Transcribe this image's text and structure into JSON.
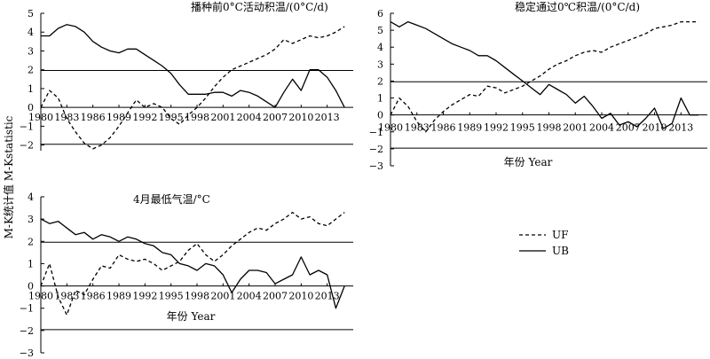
{
  "y_axis_label": "M-K统计值 M-Kstatistic",
  "legend": {
    "uf_label": "UF",
    "ub_label": "UB"
  },
  "chart_data": [
    {
      "type": "line",
      "title": "播种前0°C活动积温/(0°C/d)",
      "xlabel": "",
      "ylabel": "",
      "x_ticks": [
        "1980",
        "1983",
        "1986",
        "1989",
        "1992",
        "1995",
        "1998",
        "2001",
        "2004",
        "2007",
        "2010",
        "2013"
      ],
      "y_ticks": [
        "5",
        "4",
        "3",
        "2",
        "1",
        "0",
        "−1",
        "−2"
      ],
      "xlim": [
        1980,
        2016
      ],
      "ylim": [
        -2.3,
        5
      ],
      "reference_lines": [
        1.96,
        -1.96
      ],
      "series": [
        {
          "name": "UF",
          "style": "dashed",
          "x": [
            1980,
            1981,
            1982,
            1983,
            1984,
            1985,
            1986,
            1987,
            1988,
            1989,
            1990,
            1991,
            1992,
            1993,
            1994,
            1995,
            1996,
            1997,
            1998,
            1999,
            2000,
            2001,
            2002,
            2003,
            2004,
            2005,
            2006,
            2007,
            2008,
            2009,
            2010,
            2011,
            2012,
            2013,
            2014,
            2015
          ],
          "values": [
            0,
            0.9,
            0.5,
            -0.6,
            -1.3,
            -1.9,
            -2.2,
            -2.0,
            -1.6,
            -1.0,
            -0.3,
            0.4,
            0.0,
            0.2,
            0.0,
            -0.6,
            -0.9,
            -0.4,
            0.0,
            0.5,
            1.1,
            1.6,
            2.0,
            2.2,
            2.4,
            2.6,
            2.8,
            3.1,
            3.6,
            3.4,
            3.6,
            3.8,
            3.7,
            3.8,
            4.0,
            4.3
          ]
        },
        {
          "name": "UB",
          "style": "solid",
          "x": [
            1980,
            1981,
            1982,
            1983,
            1984,
            1985,
            1986,
            1987,
            1988,
            1989,
            1990,
            1991,
            1992,
            1993,
            1994,
            1995,
            1996,
            1997,
            1998,
            1999,
            2000,
            2001,
            2002,
            2003,
            2004,
            2005,
            2006,
            2007,
            2008,
            2009,
            2010,
            2011,
            2012,
            2013,
            2014,
            2015
          ],
          "values": [
            3.8,
            3.8,
            4.2,
            4.4,
            4.3,
            4.0,
            3.5,
            3.2,
            3.0,
            2.9,
            3.1,
            3.1,
            2.8,
            2.5,
            2.2,
            1.8,
            1.2,
            0.7,
            0.7,
            0.7,
            0.8,
            0.8,
            0.6,
            0.9,
            0.8,
            0.6,
            0.3,
            0.0,
            0.8,
            1.5,
            0.9,
            2.0,
            2.0,
            1.6,
            0.9,
            0.0
          ]
        }
      ]
    },
    {
      "type": "line",
      "title": "稳定通过0℃积温/(0°C/d)",
      "xlabel": "年份 Year",
      "ylabel": "",
      "x_ticks": [
        "1980",
        "1983",
        "1986",
        "1989",
        "1992",
        "1995",
        "1998",
        "2001",
        "2004",
        "2007",
        "2010",
        "2013"
      ],
      "y_ticks": [
        "6",
        "5",
        "4",
        "3",
        "2",
        "1",
        "0",
        "−1",
        "−2",
        "−3"
      ],
      "xlim": [
        1980,
        2016
      ],
      "ylim": [
        -3,
        6
      ],
      "reference_lines": [
        1.96,
        -1.96
      ],
      "series": [
        {
          "name": "UF",
          "style": "dashed",
          "x": [
            1980,
            1981,
            1982,
            1983,
            1984,
            1985,
            1986,
            1987,
            1988,
            1989,
            1990,
            1991,
            1992,
            1993,
            1994,
            1995,
            1996,
            1997,
            1998,
            1999,
            2000,
            2001,
            2002,
            2003,
            2004,
            2005,
            2006,
            2007,
            2008,
            2009,
            2010,
            2011,
            2012,
            2013,
            2014,
            2015
          ],
          "values": [
            0,
            1.0,
            0.5,
            -0.4,
            -1.0,
            -0.3,
            0.2,
            0.6,
            0.9,
            1.2,
            1.1,
            1.7,
            1.6,
            1.3,
            1.5,
            1.7,
            2.0,
            2.3,
            2.7,
            3.0,
            3.2,
            3.5,
            3.7,
            3.8,
            3.7,
            4.0,
            4.2,
            4.4,
            4.6,
            4.8,
            5.1,
            5.2,
            5.3,
            5.5,
            5.5,
            5.5
          ]
        },
        {
          "name": "UB",
          "style": "solid",
          "x": [
            1980,
            1981,
            1982,
            1983,
            1984,
            1985,
            1986,
            1987,
            1988,
            1989,
            1990,
            1991,
            1992,
            1993,
            1994,
            1995,
            1996,
            1997,
            1998,
            1999,
            2000,
            2001,
            2002,
            2003,
            2004,
            2005,
            2006,
            2007,
            2008,
            2009,
            2010,
            2011,
            2012,
            2013,
            2014,
            2015
          ],
          "values": [
            5.5,
            5.2,
            5.5,
            5.3,
            5.1,
            4.8,
            4.5,
            4.2,
            4.0,
            3.8,
            3.5,
            3.5,
            3.2,
            2.8,
            2.4,
            2.0,
            1.6,
            1.2,
            1.8,
            1.5,
            1.2,
            0.7,
            1.1,
            0.5,
            -0.2,
            0.1,
            -0.6,
            -0.4,
            -0.7,
            -0.2,
            0.4,
            -0.8,
            -0.5,
            1.0,
            0.0,
            0.0
          ]
        }
      ]
    },
    {
      "type": "line",
      "title": "4月最低气温/°C",
      "xlabel": "年份 Year",
      "ylabel": "",
      "x_ticks": [
        "1980",
        "1983",
        "1986",
        "1989",
        "1992",
        "1995",
        "1998",
        "2001",
        "2004",
        "2007",
        "2010",
        "2013"
      ],
      "y_ticks": [
        "4",
        "3",
        "2",
        "1",
        "0",
        "−1",
        "−2",
        "−3"
      ],
      "xlim": [
        1980,
        2016
      ],
      "ylim": [
        -3,
        4
      ],
      "reference_lines": [
        1.96,
        -1.96
      ],
      "series": [
        {
          "name": "UF",
          "style": "dashed",
          "x": [
            1980,
            1981,
            1982,
            1983,
            1984,
            1985,
            1986,
            1987,
            1988,
            1989,
            1990,
            1991,
            1992,
            1993,
            1994,
            1995,
            1996,
            1997,
            1998,
            1999,
            2000,
            2001,
            2002,
            2003,
            2004,
            2005,
            2006,
            2007,
            2008,
            2009,
            2010,
            2011,
            2012,
            2013,
            2014,
            2015
          ],
          "values": [
            0,
            1.0,
            -0.5,
            -1.3,
            -0.2,
            -0.4,
            0.3,
            0.9,
            0.8,
            1.4,
            1.2,
            1.1,
            1.2,
            1.0,
            0.7,
            0.9,
            1.1,
            1.6,
            1.9,
            1.4,
            1.1,
            1.4,
            1.8,
            2.1,
            2.4,
            2.6,
            2.5,
            2.8,
            3.0,
            3.3,
            3.0,
            3.1,
            2.8,
            2.7,
            3.0,
            3.3
          ]
        },
        {
          "name": "UB",
          "style": "solid",
          "x": [
            1980,
            1981,
            1982,
            1983,
            1984,
            1985,
            1986,
            1987,
            1988,
            1989,
            1990,
            1991,
            1992,
            1993,
            1994,
            1995,
            1996,
            1997,
            1998,
            1999,
            2000,
            2001,
            2002,
            2003,
            2004,
            2005,
            2006,
            2007,
            2008,
            2009,
            2010,
            2011,
            2012,
            2013,
            2014,
            2015
          ],
          "values": [
            3.0,
            2.8,
            2.9,
            2.6,
            2.3,
            2.4,
            2.1,
            2.3,
            2.2,
            2.0,
            2.2,
            2.1,
            1.9,
            1.8,
            1.5,
            1.4,
            1.0,
            0.9,
            0.7,
            1.0,
            0.9,
            0.5,
            -0.3,
            0.3,
            0.7,
            0.7,
            0.6,
            0.1,
            0.3,
            0.5,
            1.3,
            0.5,
            0.7,
            0.5,
            -1.0,
            0.0
          ]
        }
      ]
    }
  ]
}
